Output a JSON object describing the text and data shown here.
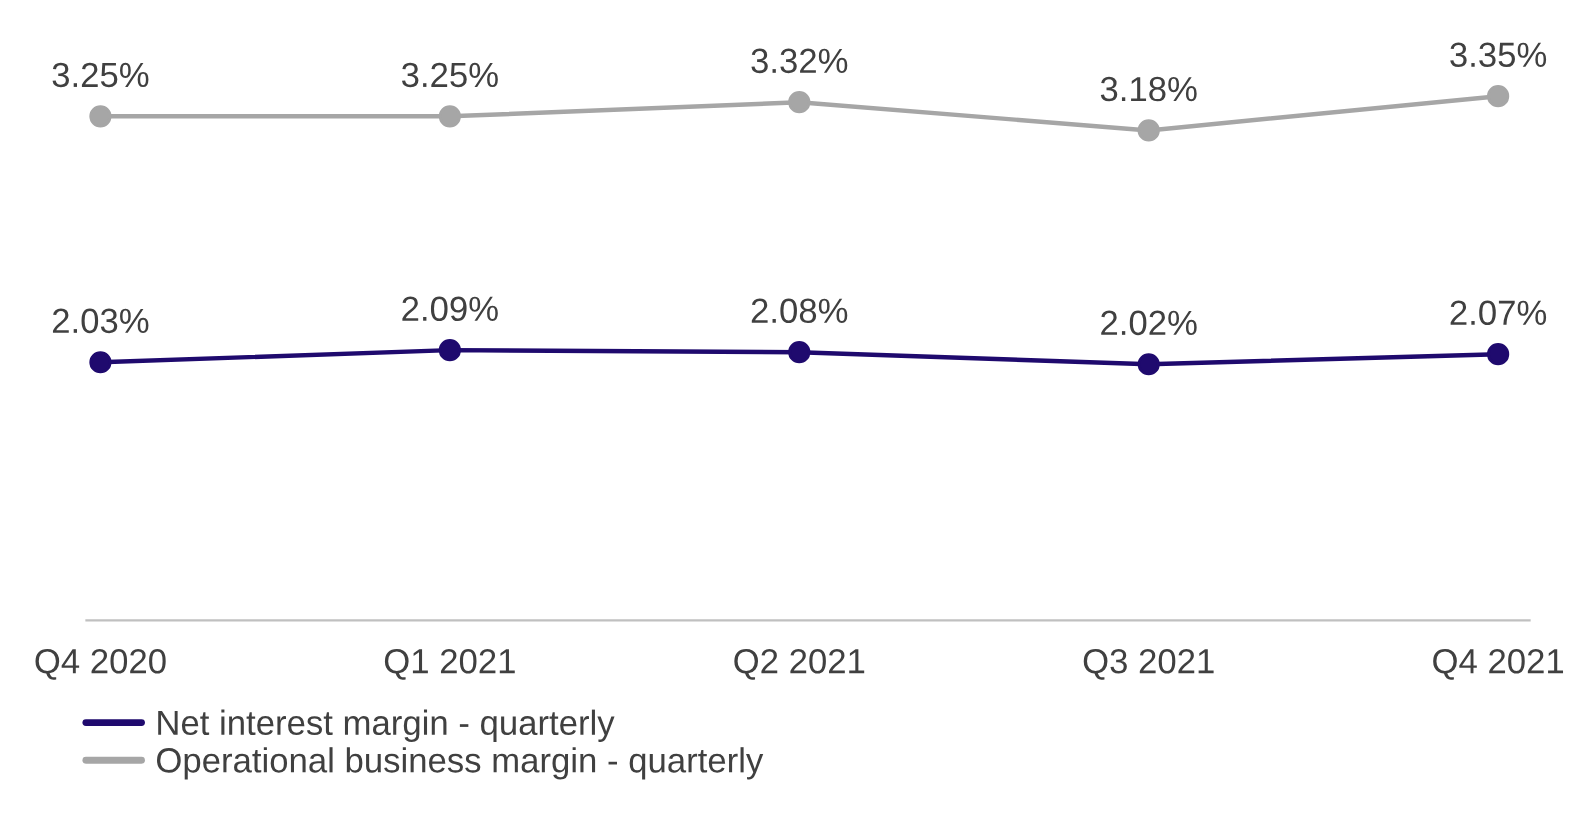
{
  "chart_data": {
    "type": "line",
    "categories": [
      "Q4 2020",
      "Q1 2021",
      "Q2 2021",
      "Q3 2021",
      "Q4 2021"
    ],
    "series": [
      {
        "name": "Net interest margin - quarterly",
        "color": "#1f0a6e",
        "values": [
          2.03,
          2.09,
          2.08,
          2.02,
          2.07
        ],
        "value_labels": [
          "2.03%",
          "2.09%",
          "2.08%",
          "2.02%",
          "2.07%"
        ]
      },
      {
        "name": "Operational business margin - quarterly",
        "color": "#a6a6a6",
        "values": [
          3.25,
          3.25,
          3.32,
          3.18,
          3.35
        ],
        "value_labels": [
          "3.25%",
          "3.25%",
          "3.32%",
          "3.18%",
          "3.35%"
        ]
      }
    ],
    "tick_labels": "x",
    "marker": "circle",
    "legend": "bottom left",
    "grid": false
  }
}
